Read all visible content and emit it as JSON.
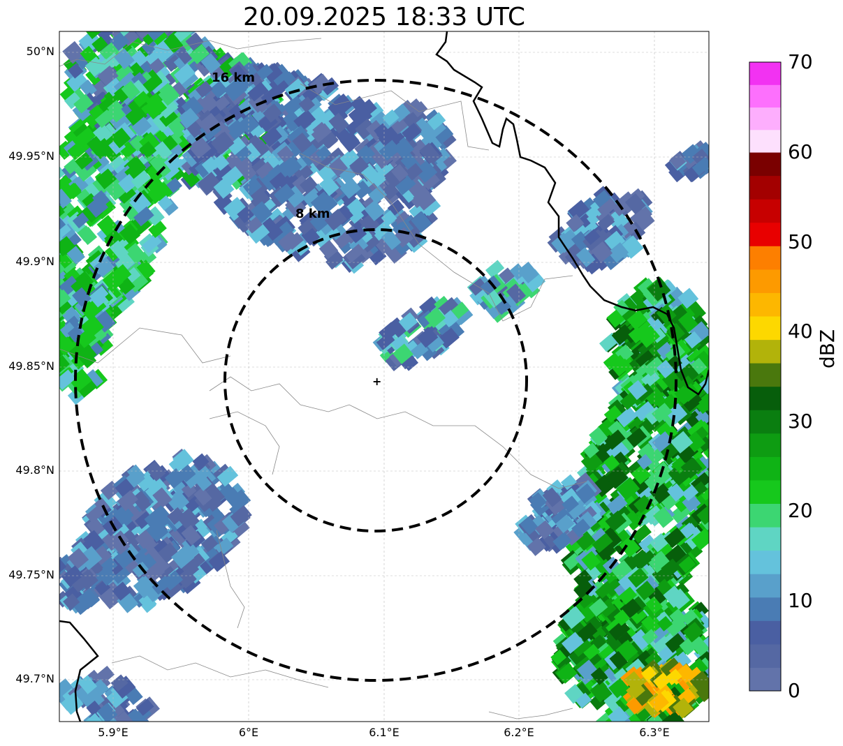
{
  "title": "20.09.2025 18:33 UTC",
  "map": {
    "lat_ticks": [
      "50°N",
      "49.95°N",
      "49.9°N",
      "49.85°N",
      "49.8°N",
      "49.75°N",
      "49.7°N"
    ],
    "lon_ticks": [
      "5.9°E",
      "6°E",
      "6.1°E",
      "6.2°E",
      "6.3°E"
    ],
    "range_rings": [
      {
        "label": "8 km",
        "radius_km": 8
      },
      {
        "label": "16 km",
        "radius_km": 16
      }
    ],
    "radar_site_marker": "+"
  },
  "colorbar": {
    "label": "dBZ",
    "ticks": [
      "70",
      "60",
      "50",
      "40",
      "30",
      "20",
      "10",
      "0"
    ],
    "colors": [
      "#6273aa",
      "#5568a3",
      "#4a5fa2",
      "#4a7cb4",
      "#59a0cb",
      "#64c2dc",
      "#5fd5c3",
      "#3cd672",
      "#16c81c",
      "#0fb315",
      "#0e9c12",
      "#0a7e10",
      "#075e0b",
      "#4a780d",
      "#b2b30a",
      "#fdd800",
      "#fdb700",
      "#fd9a00",
      "#fd7f00",
      "#e80000",
      "#c70000",
      "#a30000",
      "#7a0000",
      "#fde0fd",
      "#fdaefd",
      "#fd70fd",
      "#f232f2"
    ]
  }
}
